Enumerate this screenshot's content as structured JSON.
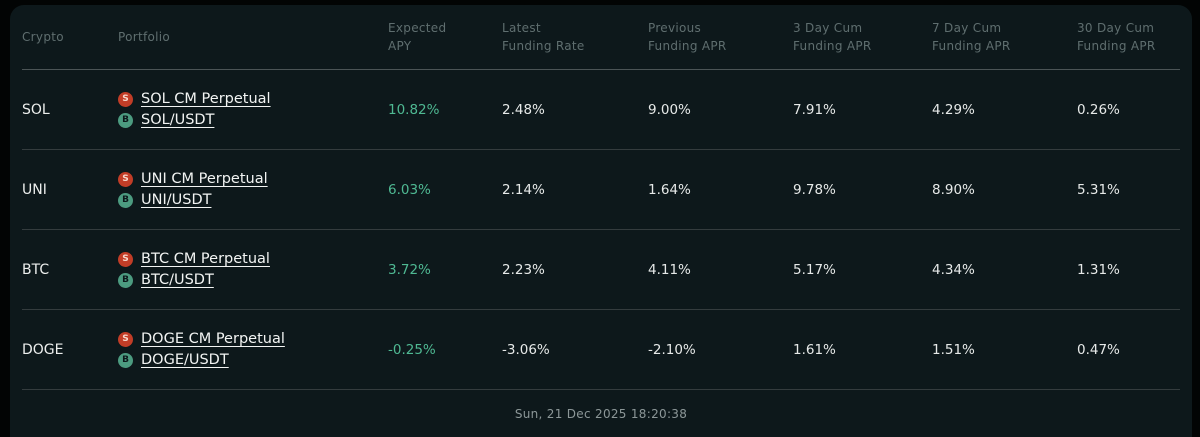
{
  "colors": {
    "panel_background": "#0d181b",
    "page_background": "#020404",
    "apy_green": "#4fb993",
    "badge_sell": "#c23d27",
    "badge_buy": "#4c9b80",
    "header_text": "#5f6e6f",
    "body_text": "#e6e9e8"
  },
  "table": {
    "headers": [
      {
        "line1": "Crypto",
        "line2": ""
      },
      {
        "line1": "Portfolio",
        "line2": ""
      },
      {
        "line1": "Expected",
        "line2": "APY"
      },
      {
        "line1": "Latest",
        "line2": "Funding Rate"
      },
      {
        "line1": "Previous",
        "line2": "Funding APR"
      },
      {
        "line1": "3 Day Cum",
        "line2": "Funding APR"
      },
      {
        "line1": "7 Day Cum",
        "line2": "Funding APR"
      },
      {
        "line1": "30 Day Cum",
        "line2": "Funding APR"
      }
    ],
    "rows": [
      {
        "crypto": "SOL",
        "portfolio": [
          {
            "badge": "S",
            "label": "SOL CM Perpetual"
          },
          {
            "badge": "B",
            "label": "SOL/USDT"
          }
        ],
        "expected_apy": "10.82%",
        "latest_funding_rate": "2.48%",
        "previous_funding_apr": "9.00%",
        "cum_3d": "7.91%",
        "cum_7d": "4.29%",
        "cum_30d": "0.26%"
      },
      {
        "crypto": "UNI",
        "portfolio": [
          {
            "badge": "S",
            "label": "UNI CM Perpetual"
          },
          {
            "badge": "B",
            "label": "UNI/USDT"
          }
        ],
        "expected_apy": "6.03%",
        "latest_funding_rate": "2.14%",
        "previous_funding_apr": "1.64%",
        "cum_3d": "9.78%",
        "cum_7d": "8.90%",
        "cum_30d": "5.31%"
      },
      {
        "crypto": "BTC",
        "portfolio": [
          {
            "badge": "S",
            "label": "BTC CM Perpetual"
          },
          {
            "badge": "B",
            "label": "BTC/USDT"
          }
        ],
        "expected_apy": "3.72%",
        "latest_funding_rate": "2.23%",
        "previous_funding_apr": "4.11%",
        "cum_3d": "5.17%",
        "cum_7d": "4.34%",
        "cum_30d": "1.31%"
      },
      {
        "crypto": "DOGE",
        "portfolio": [
          {
            "badge": "S",
            "label": "DOGE CM Perpetual"
          },
          {
            "badge": "B",
            "label": "DOGE/USDT"
          }
        ],
        "expected_apy": "-0.25%",
        "latest_funding_rate": "-3.06%",
        "previous_funding_apr": "-2.10%",
        "cum_3d": "1.61%",
        "cum_7d": "1.51%",
        "cum_30d": "0.47%"
      }
    ]
  },
  "footer": {
    "timestamp": "Sun, 21 Dec 2025 18:20:38"
  }
}
